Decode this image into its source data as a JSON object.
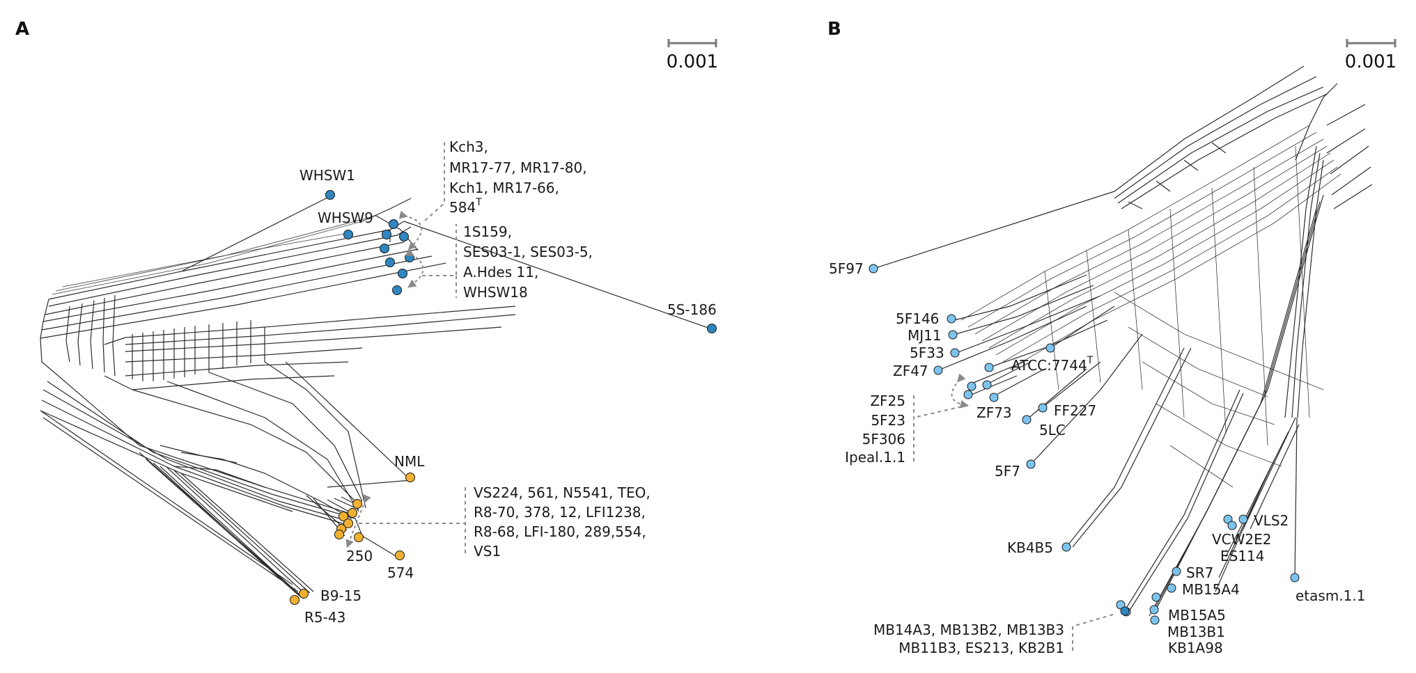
{
  "colors": {
    "clade_blue": "#2f86c0",
    "clade_orange": "#f0b030",
    "clade_lightblue": "#7cc3ee",
    "scale_bar": "#7a7a7a"
  },
  "panel_a": {
    "letter": "A",
    "scale_label": "0.001",
    "labels": {
      "whsw1": "WHSW1",
      "whsw9": "WHSW9",
      "s5_186": "5S-186",
      "nml": "NML",
      "n250": "250",
      "n574": "574",
      "b9_15": "B9-15",
      "r5_43": "R5-43"
    },
    "group_kch": {
      "line1": "Kch3,",
      "line2": "MR17-77, MR17-80,",
      "line3": "Kch1, MR17-66,",
      "line4": "584",
      "line4_sup": "T"
    },
    "group_1s159": {
      "line1": "1S159,",
      "line2": "SES03-1, SES03-5,",
      "line3": "A.Hdes 11,",
      "line4": "WHSW18"
    },
    "group_vs224": {
      "line1": "VS224, 561, N5541, TEO,",
      "line2": "R8-70, 378, 12, LFI1238,",
      "line3": "R8-68, LFI-180, 289,554,",
      "line4": "VS1"
    }
  },
  "panel_b": {
    "letter": "B",
    "scale_label": "0.001",
    "labels": {
      "f97": "5F97",
      "f146": "5F146",
      "mj11": "MJ11",
      "f33": "5F33",
      "zf47": "ZF47",
      "atcc": "ATCC:7744",
      "atcc_sup": "T",
      "zf73": "ZF73",
      "ff227": "FF227",
      "lc5": "5LC",
      "f7": "5F7",
      "kb4b5": "KB4B5",
      "vls2": "VLS2",
      "vcw2e2": "VCW2E2",
      "es114": "ES114",
      "sr7": "SR7",
      "mb15a4": "MB15A4",
      "mb15a5": "MB15A5",
      "mb13b1": "MB13B1",
      "kb1a98": "KB1A98",
      "etasm": "etasm.1.1"
    },
    "group_zf25": {
      "line1": "ZF25",
      "line2": "5F23",
      "line3": "5F306",
      "line4": "Ipeal.1.1"
    },
    "group_mb14a3": {
      "line1": "MB14A3, MB13B2, MB13B3",
      "line2": "MB11B3, ES213, KB2B1"
    }
  }
}
